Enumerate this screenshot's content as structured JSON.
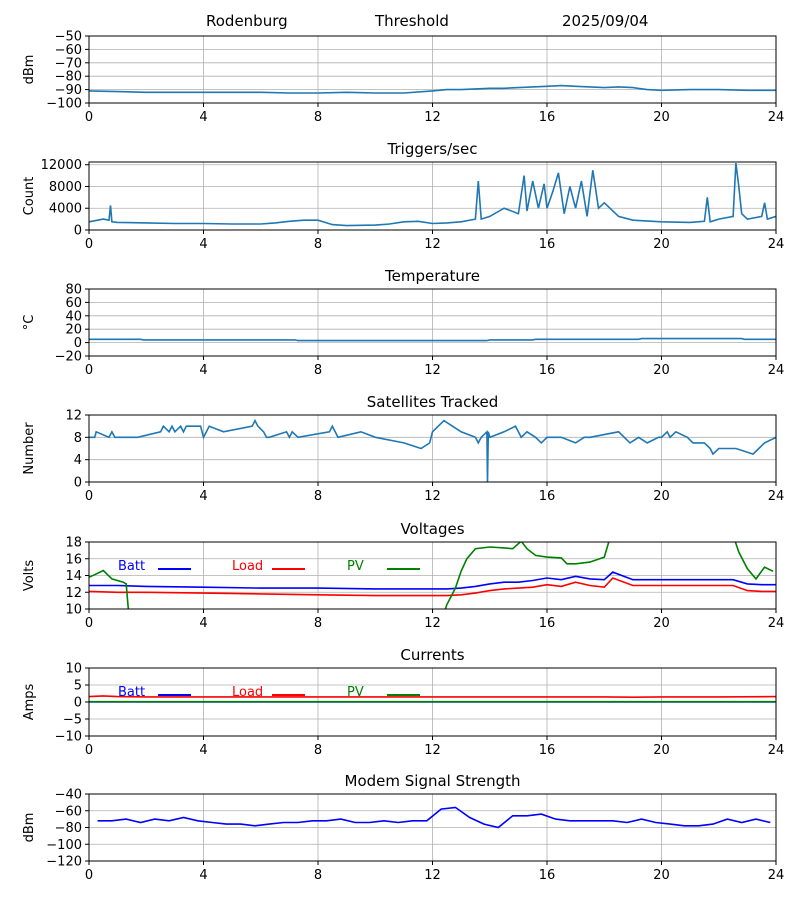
{
  "header": {
    "station": "Rodenburg",
    "mode": "Threshold",
    "date": "2025/09/04"
  },
  "colors": {
    "batt": "#0000ff",
    "load": "#ff0000",
    "pv": "#008000",
    "series": "#1f77b4",
    "grid": "#b0b0b0"
  },
  "chart_data": [
    {
      "type": "line",
      "title": "",
      "ylabel": "dBm",
      "xlim": [
        0,
        24
      ],
      "ylim": [
        -100,
        -50
      ],
      "xticks": [
        0,
        4,
        8,
        12,
        16,
        20,
        24
      ],
      "yticks": [
        -100,
        -90,
        -80,
        -70,
        -60,
        -50
      ],
      "grid": true,
      "series": [
        {
          "color": "#1f77b4",
          "x": [
            0,
            1,
            2,
            3,
            4,
            5,
            6,
            7,
            8,
            9,
            10,
            11,
            12,
            12.5,
            13,
            13.5,
            14,
            14.5,
            15,
            15.5,
            16,
            16.5,
            17,
            17.5,
            18,
            18.5,
            19,
            19.5,
            20,
            21,
            22,
            23,
            24
          ],
          "y": [
            -91,
            -91.5,
            -92,
            -92,
            -92,
            -92,
            -92,
            -92.5,
            -92.5,
            -92,
            -92.5,
            -92.5,
            -91,
            -90,
            -90,
            -89.5,
            -89,
            -89,
            -88.5,
            -88,
            -87.5,
            -87,
            -87.5,
            -88,
            -88.5,
            -88,
            -88.5,
            -90,
            -90.5,
            -90,
            -90,
            -90.5,
            -90.5
          ]
        }
      ]
    },
    {
      "type": "line",
      "title": "Triggers/sec",
      "ylabel": "Count",
      "xlim": [
        0,
        24
      ],
      "ylim": [
        0,
        12500
      ],
      "xticks": [
        0,
        4,
        8,
        12,
        16,
        20,
        24
      ],
      "yticks": [
        0,
        4000,
        8000,
        12000
      ],
      "grid": true,
      "series": [
        {
          "color": "#1f77b4",
          "x": [
            0,
            0.5,
            0.7,
            0.75,
            0.8,
            1,
            2,
            3,
            4,
            5,
            6,
            6.5,
            7,
            7.5,
            8,
            8.5,
            9,
            10,
            10.5,
            11,
            11.5,
            12,
            12.5,
            13,
            13.5,
            13.6,
            13.7,
            14,
            14.5,
            15,
            15.2,
            15.3,
            15.5,
            15.7,
            15.9,
            16,
            16.2,
            16.4,
            16.6,
            16.8,
            17,
            17.2,
            17.4,
            17.6,
            17.8,
            18,
            18.5,
            19,
            20,
            21,
            21.5,
            21.6,
            21.7,
            22,
            22.5,
            22.6,
            22.7,
            22.8,
            22.9,
            23,
            23.5,
            23.6,
            23.7,
            24
          ],
          "y": [
            1500,
            2000,
            1800,
            4500,
            1500,
            1400,
            1300,
            1200,
            1200,
            1100,
            1100,
            1300,
            1600,
            1800,
            1800,
            1000,
            800,
            900,
            1100,
            1500,
            1600,
            1200,
            1300,
            1500,
            2000,
            9000,
            2000,
            2500,
            4000,
            3000,
            10000,
            3500,
            9000,
            4000,
            8500,
            4000,
            7000,
            10500,
            3000,
            8000,
            4000,
            9000,
            2500,
            11000,
            4000,
            5000,
            2500,
            1800,
            1500,
            1400,
            1600,
            6000,
            1500,
            2000,
            2500,
            12300,
            8000,
            3000,
            2500,
            2000,
            2500,
            5000,
            2000,
            2500
          ]
        }
      ]
    },
    {
      "type": "line",
      "title": "Temperature",
      "ylabel": "°C",
      "xlim": [
        0,
        24
      ],
      "ylim": [
        -20,
        80
      ],
      "xticks": [
        0,
        4,
        8,
        12,
        16,
        20,
        24
      ],
      "yticks": [
        -20,
        0,
        20,
        40,
        60,
        80
      ],
      "grid": true,
      "series": [
        {
          "color": "#1f77b4",
          "x": [
            0,
            1.8,
            1.9,
            7.2,
            7.3,
            13.9,
            14,
            15.5,
            15.6,
            19.2,
            19.3,
            22.8,
            22.9,
            24
          ],
          "y": [
            5,
            5,
            4,
            4,
            3,
            3,
            4,
            4,
            5,
            5,
            6,
            6,
            5,
            5
          ]
        }
      ]
    },
    {
      "type": "line",
      "title": "Satellites Tracked",
      "ylabel": "Number",
      "xlim": [
        0,
        24
      ],
      "ylim": [
        0,
        12
      ],
      "xticks": [
        0,
        4,
        8,
        12,
        16,
        20,
        24
      ],
      "yticks": [
        0,
        4,
        8,
        12
      ],
      "grid": true,
      "series": [
        {
          "color": "#1f77b4",
          "x": [
            0,
            0.2,
            0.25,
            0.7,
            0.8,
            0.9,
            1.7,
            2.5,
            2.6,
            2.8,
            2.9,
            3.0,
            3.2,
            3.3,
            3.4,
            3.6,
            3.9,
            4.0,
            4.1,
            4.2,
            4.7,
            5.7,
            5.8,
            5.9,
            6.1,
            6.2,
            6.3,
            6.9,
            7.0,
            7.1,
            7.3,
            8.4,
            8.5,
            8.6,
            8.7,
            9.5,
            10.0,
            11.0,
            11.6,
            11.9,
            11.95,
            12.0,
            12.2,
            12.4,
            12.7,
            13.0,
            13.5,
            13.6,
            13.7,
            13.9,
            13.92,
            13.95,
            14.0,
            14.5,
            14.9,
            15.0,
            15.1,
            15.3,
            15.6,
            15.8,
            16.0,
            16.5,
            17.0,
            17.3,
            17.5,
            18.5,
            18.9,
            19.2,
            19.5,
            19.9,
            20.0,
            20.2,
            20.3,
            20.5,
            20.9,
            21.1,
            21.5,
            21.7,
            21.8,
            22.0,
            22.2,
            22.4,
            22.6,
            23.2,
            23.4,
            23.6,
            24
          ],
          "y": [
            8,
            8,
            9,
            8,
            9,
            8,
            8,
            9,
            10,
            9,
            10,
            9,
            10,
            9,
            10,
            10,
            10,
            8,
            9,
            10,
            9,
            10,
            11,
            10,
            9,
            8,
            8,
            9,
            8,
            9,
            8,
            9,
            10,
            9,
            8,
            9,
            8,
            7,
            6,
            7,
            8,
            9,
            10,
            11,
            10,
            9,
            8,
            7,
            8,
            9,
            0,
            9,
            8,
            9,
            10,
            9,
            8,
            9,
            8,
            7,
            8,
            8,
            7,
            8,
            8,
            9,
            7,
            8,
            7,
            8,
            8,
            9,
            8,
            9,
            8,
            7,
            7,
            6,
            5,
            6,
            6,
            6,
            6,
            5,
            6,
            7,
            8
          ]
        }
      ]
    },
    {
      "type": "line",
      "title": "Voltages",
      "ylabel": "Volts",
      "xlim": [
        0,
        24
      ],
      "ylim": [
        10,
        18
      ],
      "xticks": [
        0,
        4,
        8,
        12,
        16,
        20,
        24
      ],
      "yticks": [
        10,
        12,
        14,
        16,
        18
      ],
      "grid": true,
      "legend": [
        "Batt",
        "Load",
        "PV"
      ],
      "legend_placement": "top-left",
      "series": [
        {
          "name": "Batt",
          "color": "#0000ff",
          "x": [
            0,
            1,
            2,
            4,
            6,
            8,
            10,
            12,
            12.5,
            13.0,
            13.5,
            14,
            14.5,
            15,
            15.5,
            16,
            16.5,
            17,
            17.5,
            18,
            18.3,
            19,
            20,
            21,
            22,
            22.5,
            23,
            23.5,
            24
          ],
          "y": [
            12.8,
            12.8,
            12.7,
            12.6,
            12.5,
            12.5,
            12.4,
            12.4,
            12.4,
            12.5,
            12.7,
            13.0,
            13.2,
            13.2,
            13.4,
            13.7,
            13.5,
            13.9,
            13.6,
            13.5,
            14.4,
            13.5,
            13.5,
            13.5,
            13.5,
            13.5,
            13.0,
            12.9,
            12.9
          ]
        },
        {
          "name": "Load",
          "color": "#ff0000",
          "x": [
            0,
            1,
            2,
            4,
            6,
            8,
            10,
            12,
            12.5,
            13.0,
            13.5,
            14,
            14.5,
            15,
            15.5,
            16,
            16.5,
            17,
            17.5,
            18,
            18.3,
            19,
            20,
            21,
            22,
            22.5,
            23,
            23.5,
            24
          ],
          "y": [
            12.1,
            12.0,
            12.0,
            11.9,
            11.8,
            11.7,
            11.6,
            11.6,
            11.6,
            11.7,
            11.9,
            12.2,
            12.4,
            12.5,
            12.6,
            12.9,
            12.7,
            13.2,
            12.8,
            12.6,
            13.7,
            12.8,
            12.8,
            12.8,
            12.8,
            12.8,
            12.2,
            12.1,
            12.1
          ]
        },
        {
          "name": "PV",
          "color": "#008000",
          "x": [
            0,
            0.2,
            0.5,
            0.8,
            1.2,
            1.3,
            1.35,
            1.4,
            12.4,
            12.5,
            12.8,
            13.0,
            13.2,
            13.5,
            14.0,
            14.5,
            14.8,
            15.1,
            15.3,
            15.6,
            16.0,
            16.5,
            16.7,
            17.0,
            17.5,
            18.0,
            18.2,
            22.5,
            22.7,
            23.0,
            23.3,
            23.6,
            23.9
          ],
          "y": [
            13.8,
            14.1,
            14.6,
            13.6,
            13.2,
            13.0,
            11.0,
            9.0,
            9.5,
            10.5,
            12.5,
            14.5,
            16.0,
            17.2,
            17.4,
            17.3,
            17.2,
            18.1,
            17.2,
            16.4,
            16.2,
            16.1,
            15.4,
            15.4,
            15.6,
            16.2,
            18.5,
            18.8,
            16.8,
            14.8,
            13.6,
            15.0,
            14.5
          ]
        }
      ]
    },
    {
      "type": "line",
      "title": "Currents",
      "ylabel": "Amps",
      "xlim": [
        0,
        24
      ],
      "ylim": [
        -10,
        10
      ],
      "xticks": [
        0,
        4,
        8,
        12,
        16,
        20,
        24
      ],
      "yticks": [
        -10,
        -5,
        0,
        5,
        10
      ],
      "grid": true,
      "legend": [
        "Batt",
        "Load",
        "PV"
      ],
      "legend_placement": "top-left",
      "series": [
        {
          "name": "Batt",
          "color": "#0000ff",
          "x": [
            0,
            24
          ],
          "y": [
            0,
            0
          ]
        },
        {
          "name": "Load",
          "color": "#ff0000",
          "x": [
            0,
            0.5,
            1,
            2,
            4,
            6,
            8,
            10,
            12,
            14,
            16,
            18,
            19,
            20,
            22,
            24
          ],
          "y": [
            1.6,
            1.8,
            1.6,
            1.5,
            1.5,
            1.5,
            1.5,
            1.5,
            1.5,
            1.5,
            1.5,
            1.5,
            1.4,
            1.5,
            1.5,
            1.6
          ]
        },
        {
          "name": "PV",
          "color": "#008000",
          "x": [
            0,
            24
          ],
          "y": [
            0.1,
            0.1
          ]
        }
      ]
    },
    {
      "type": "line",
      "title": "Modem Signal Strength",
      "ylabel": "dBm",
      "xlim": [
        0,
        24
      ],
      "ylim": [
        -120,
        -40
      ],
      "xticks": [
        0,
        4,
        8,
        12,
        16,
        20,
        24
      ],
      "yticks": [
        -120,
        -100,
        -80,
        -60,
        -40
      ],
      "grid": true,
      "series": [
        {
          "color": "#0000ff",
          "x": [
            0.3,
            0.8,
            1.3,
            1.8,
            2.3,
            2.8,
            3.3,
            3.8,
            4.3,
            4.8,
            5.3,
            5.8,
            6.3,
            6.8,
            7.3,
            7.8,
            8.3,
            8.8,
            9.3,
            9.8,
            10.3,
            10.8,
            11.3,
            11.8,
            12.3,
            12.8,
            13.3,
            13.8,
            14.3,
            14.8,
            15.3,
            15.8,
            16.3,
            16.8,
            17.3,
            17.8,
            18.3,
            18.8,
            19.3,
            19.8,
            20.3,
            20.8,
            21.3,
            21.8,
            22.3,
            22.8,
            23.3,
            23.8
          ],
          "y": [
            -72,
            -72,
            -70,
            -74,
            -70,
            -72,
            -68,
            -72,
            -74,
            -76,
            -76,
            -78,
            -76,
            -74,
            -74,
            -72,
            -72,
            -70,
            -74,
            -74,
            -72,
            -74,
            -72,
            -72,
            -58,
            -56,
            -68,
            -76,
            -80,
            -66,
            -66,
            -64,
            -70,
            -72,
            -72,
            -72,
            -72,
            -74,
            -70,
            -74,
            -76,
            -78,
            -78,
            -76,
            -70,
            -74,
            -70,
            -74
          ]
        }
      ]
    }
  ]
}
